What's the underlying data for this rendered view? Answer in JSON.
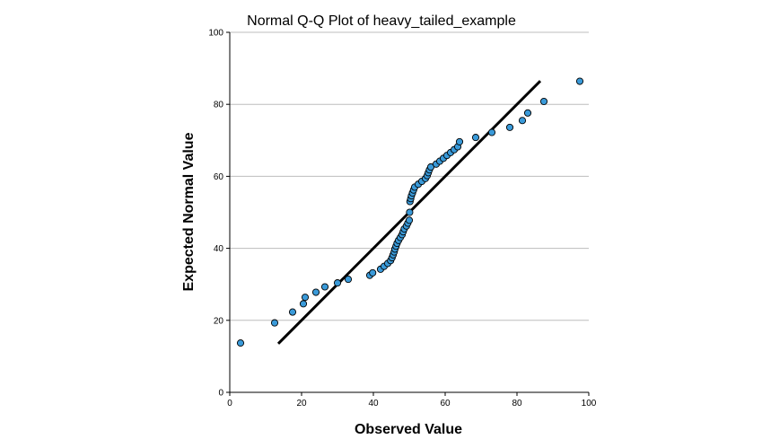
{
  "chart_data": {
    "type": "scatter",
    "title": "Normal Q-Q Plot of heavy_tailed_example",
    "xlabel": "Observed Value",
    "ylabel": "Expected Normal Value",
    "xlim": [
      0,
      100
    ],
    "ylim": [
      0,
      100
    ],
    "xticks": [
      "0",
      "20",
      "40",
      "60",
      "80",
      "100"
    ],
    "yticks": [
      "0",
      "20",
      "40",
      "60",
      "80",
      "100"
    ],
    "grid": "horizontal",
    "point_color": "#3a9ad9",
    "line_color": "#000000",
    "reference_line": {
      "x": [
        13.5,
        86.5
      ],
      "y": [
        13.5,
        86.5
      ]
    },
    "points": [
      [
        3,
        13.7
      ],
      [
        12.5,
        19.3
      ],
      [
        17.5,
        22.3
      ],
      [
        20.5,
        24.6
      ],
      [
        21,
        26.4
      ],
      [
        24,
        27.8
      ],
      [
        26.5,
        29.3
      ],
      [
        30,
        30.4
      ],
      [
        33,
        31.4
      ],
      [
        39,
        32.5
      ],
      [
        39.8,
        33.2
      ],
      [
        42,
        34.2
      ],
      [
        43,
        35.0
      ],
      [
        44,
        35.8
      ],
      [
        44.8,
        36.6
      ],
      [
        45.2,
        37.4
      ],
      [
        45.5,
        38.2
      ],
      [
        45.8,
        39.0
      ],
      [
        46,
        39.8
      ],
      [
        46.3,
        40.6
      ],
      [
        46.6,
        41.4
      ],
      [
        47,
        42.2
      ],
      [
        47.5,
        43.0
      ],
      [
        48,
        43.8
      ],
      [
        48.3,
        44.6
      ],
      [
        48.6,
        45.4
      ],
      [
        49.2,
        46.2
      ],
      [
        49.6,
        47.0
      ],
      [
        50,
        47.8
      ],
      [
        50.1,
        50.0
      ],
      [
        50.2,
        53.0
      ],
      [
        50.4,
        53.8
      ],
      [
        50.6,
        54.6
      ],
      [
        50.9,
        55.4
      ],
      [
        51.2,
        56.2
      ],
      [
        51.5,
        57.0
      ],
      [
        52.5,
        57.8
      ],
      [
        53.5,
        58.6
      ],
      [
        54.5,
        59.4
      ],
      [
        55,
        60.2
      ],
      [
        55.3,
        61.0
      ],
      [
        55.6,
        61.8
      ],
      [
        56,
        62.6
      ],
      [
        57.5,
        63.4
      ],
      [
        58.5,
        64.2
      ],
      [
        59.5,
        65.0
      ],
      [
        60.5,
        65.8
      ],
      [
        61.5,
        66.6
      ],
      [
        62.5,
        67.4
      ],
      [
        63.5,
        68.2
      ],
      [
        64,
        69.6
      ],
      [
        68.5,
        70.8
      ],
      [
        73,
        72.2
      ],
      [
        78,
        73.6
      ],
      [
        81.5,
        75.5
      ],
      [
        83,
        77.6
      ],
      [
        87.5,
        80.8
      ],
      [
        97.5,
        86.4
      ]
    ]
  }
}
